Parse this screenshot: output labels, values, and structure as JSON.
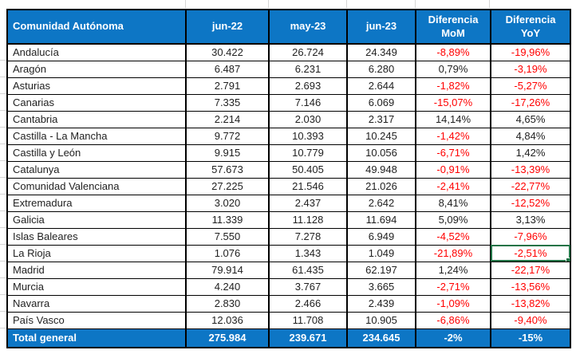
{
  "table": {
    "headers": [
      "Comunidad Autónoma",
      "jun-22",
      "may-23",
      "jun-23",
      "Diferencia MoM",
      "Diferencia YoY"
    ],
    "rows": [
      {
        "name": "Andalucía",
        "jun22": "30.422",
        "may23": "26.724",
        "jun23": "24.349",
        "mom": "-8,89%",
        "yoy": "-19,96%"
      },
      {
        "name": "Aragón",
        "jun22": "6.487",
        "may23": "6.231",
        "jun23": "6.280",
        "mom": "0,79%",
        "yoy": "-3,19%"
      },
      {
        "name": "Asturias",
        "jun22": "2.791",
        "may23": "2.693",
        "jun23": "2.644",
        "mom": "-1,82%",
        "yoy": "-5,27%"
      },
      {
        "name": "Canarias",
        "jun22": "7.335",
        "may23": "7.146",
        "jun23": "6.069",
        "mom": "-15,07%",
        "yoy": "-17,26%"
      },
      {
        "name": "Cantabria",
        "jun22": "2.214",
        "may23": "2.030",
        "jun23": "2.317",
        "mom": "14,14%",
        "yoy": "4,65%"
      },
      {
        "name": "Castilla - La Mancha",
        "jun22": "9.772",
        "may23": "10.393",
        "jun23": "10.245",
        "mom": "-1,42%",
        "yoy": "4,84%"
      },
      {
        "name": "Castilla y León",
        "jun22": "9.915",
        "may23": "10.779",
        "jun23": "10.056",
        "mom": "-6,71%",
        "yoy": "1,42%"
      },
      {
        "name": "Catalunya",
        "jun22": "57.673",
        "may23": "50.405",
        "jun23": "49.948",
        "mom": "-0,91%",
        "yoy": "-13,39%"
      },
      {
        "name": "Comunidad Valenciana",
        "jun22": "27.225",
        "may23": "21.546",
        "jun23": "21.026",
        "mom": "-2,41%",
        "yoy": "-22,77%"
      },
      {
        "name": "Extremadura",
        "jun22": "3.020",
        "may23": "2.437",
        "jun23": "2.642",
        "mom": "8,41%",
        "yoy": "-12,52%"
      },
      {
        "name": "Galicia",
        "jun22": "11.339",
        "may23": "11.128",
        "jun23": "11.694",
        "mom": "5,09%",
        "yoy": "3,13%"
      },
      {
        "name": "Islas Baleares",
        "jun22": "7.550",
        "may23": "7.278",
        "jun23": "6.949",
        "mom": "-4,52%",
        "yoy": "-7,96%"
      },
      {
        "name": "La Rioja",
        "jun22": "1.076",
        "may23": "1.343",
        "jun23": "1.049",
        "mom": "-21,89%",
        "yoy": "-2,51%",
        "yoy_selected": true
      },
      {
        "name": "Madrid",
        "jun22": "79.914",
        "may23": "61.435",
        "jun23": "62.197",
        "mom": "1,24%",
        "yoy": "-22,17%"
      },
      {
        "name": "Murcia",
        "jun22": "4.240",
        "may23": "3.767",
        "jun23": "3.665",
        "mom": "-2,71%",
        "yoy": "-13,56%"
      },
      {
        "name": "Navarra",
        "jun22": "2.830",
        "may23": "2.466",
        "jun23": "2.439",
        "mom": "-1,09%",
        "yoy": "-13,82%"
      },
      {
        "name": "País Vasco",
        "jun22": "12.036",
        "may23": "11.708",
        "jun23": "10.905",
        "mom": "-6,86%",
        "yoy": "-9,40%"
      }
    ],
    "total": {
      "name": "Total general",
      "jun22": "275.984",
      "may23": "239.671",
      "jun23": "234.645",
      "mom": "-2%",
      "yoy": "-15%"
    }
  },
  "colors": {
    "header_bg": "#0d76c5",
    "negative_text": "#ff0000",
    "selection_green": "#217346",
    "border": "#000000"
  }
}
